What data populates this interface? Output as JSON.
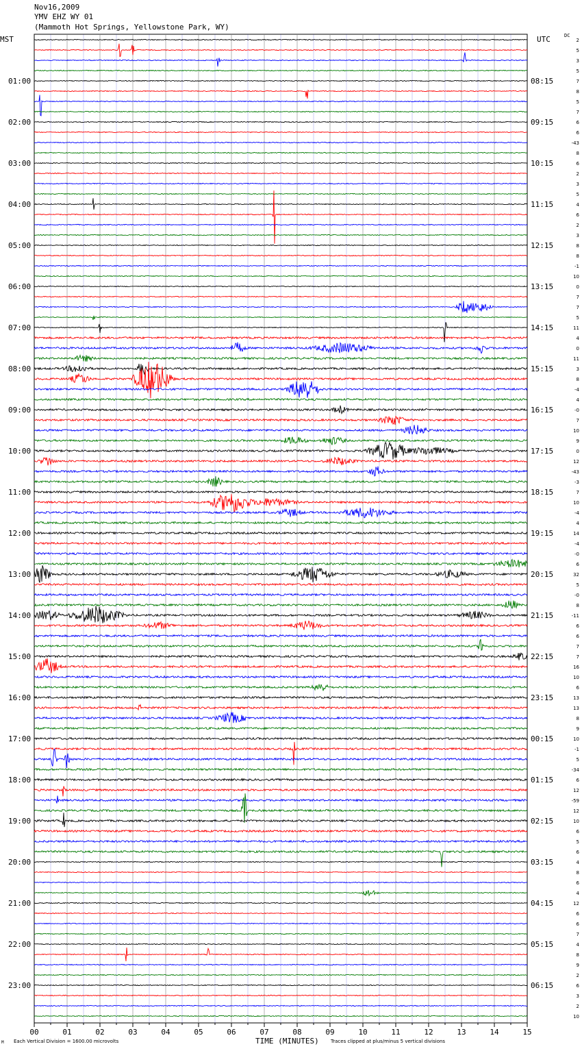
{
  "header": {
    "date": "Nov16,2009",
    "station": "YMV EHZ WY 01",
    "location": "(Mammoth Hot Springs, Yellowstone Park, WY)"
  },
  "left_timezone": "MST",
  "right_timezone": "UTC",
  "dc_label": "DC",
  "footer": {
    "scale_note": "Each Vertical Division = 1600.00 microvolts",
    "clip_note": "Traces clipped at plus/minus 5 vertical divisions",
    "mark": "M"
  },
  "colors": {
    "black": "#000000",
    "red": "#ff0000",
    "blue": "#0000ff",
    "green": "#007a00",
    "grid": "#808080",
    "blue_grid": "#0000cc"
  },
  "chart_data": {
    "type": "line",
    "xlabel": "TIME (MINUTES)",
    "xlim": [
      0,
      15
    ],
    "x_ticks": [
      "00",
      "01",
      "02",
      "03",
      "04",
      "05",
      "06",
      "07",
      "08",
      "09",
      "10",
      "11",
      "12",
      "13",
      "14",
      "15"
    ],
    "trace_minutes": 15,
    "trace_colors": [
      "black",
      "red",
      "blue",
      "green"
    ],
    "left_hour_labels": [
      "01:00",
      "02:00",
      "03:00",
      "04:00",
      "05:00",
      "06:00",
      "07:00",
      "08:00",
      "09:00",
      "10:00",
      "11:00",
      "12:00",
      "13:00",
      "14:00",
      "15:00",
      "16:00",
      "17:00",
      "18:00",
      "19:00",
      "20:00",
      "21:00",
      "22:00",
      "23:00"
    ],
    "right_hour_labels": [
      "08:15",
      "09:15",
      "10:15",
      "11:15",
      "12:15",
      "13:15",
      "14:15",
      "15:15",
      "16:15",
      "17:15",
      "18:15",
      "19:15",
      "20:15",
      "21:15",
      "22:15",
      "23:15",
      "00:15",
      "01:15",
      "02:15",
      "03:15",
      "04:15",
      "05:15",
      "06:15"
    ],
    "dc_values": [
      "2",
      "5",
      "3",
      "5",
      "7",
      "8",
      "5",
      "7",
      "6",
      "6",
      "-43",
      "8",
      "6",
      "2",
      "3",
      "5",
      "4",
      "6",
      "2",
      "3",
      "8",
      "8",
      "-1",
      "10",
      "0",
      "7",
      "7",
      "5",
      "11",
      "4",
      "0",
      "11",
      "3",
      "8",
      "-4",
      "4",
      "-0",
      "7",
      "10",
      "9",
      "0",
      "12",
      "-43",
      "-3",
      "7",
      "10",
      "-4",
      "4",
      "14",
      "-4",
      "-0",
      "6",
      "32",
      "5",
      "-0",
      "8",
      "-11",
      "6",
      "6",
      "7",
      "7",
      "16",
      "10",
      "6",
      "13",
      "13",
      "8",
      "9",
      "10",
      "-1",
      "5",
      "-34",
      "6",
      "12",
      "-59",
      "12",
      "10",
      "6",
      "5",
      "6",
      "4",
      "8",
      "6",
      "4",
      "12",
      "6",
      "6",
      "7",
      "4",
      "8",
      "9",
      "2",
      "6",
      "3",
      "2",
      "10"
    ],
    "events": [
      {
        "trace": 1,
        "minute": 2.6,
        "amp": 18,
        "width": 0.05
      },
      {
        "trace": 1,
        "minute": 3.0,
        "amp": 12,
        "width": 0.05
      },
      {
        "trace": 2,
        "minute": 5.6,
        "amp": 14,
        "width": 0.05
      },
      {
        "trace": 2,
        "minute": 13.1,
        "amp": 14,
        "width": 0.05
      },
      {
        "trace": 5,
        "minute": 8.3,
        "amp": 20,
        "width": 0.05
      },
      {
        "trace": 6,
        "minute": 0.2,
        "amp": 60,
        "width": 0.05
      },
      {
        "trace": 16,
        "minute": 1.8,
        "amp": 12,
        "width": 0.05
      },
      {
        "trace": 17,
        "minute": 7.3,
        "amp": 60,
        "width": 0.05
      },
      {
        "trace": 26,
        "minute": 13.1,
        "amp": 10,
        "width": 0.3
      },
      {
        "trace": 26,
        "minute": 13.5,
        "amp": 8,
        "width": 0.5
      },
      {
        "trace": 27,
        "minute": 1.8,
        "amp": 9,
        "width": 0.05
      },
      {
        "trace": 28,
        "minute": 2.0,
        "amp": 10,
        "width": 0.05
      },
      {
        "trace": 28,
        "minute": 12.5,
        "amp": 40,
        "width": 0.05
      },
      {
        "trace": 30,
        "minute": 6.2,
        "amp": 8,
        "width": 0.3
      },
      {
        "trace": 30,
        "minute": 9.4,
        "amp": 8,
        "width": 1.2
      },
      {
        "trace": 30,
        "minute": 13.6,
        "amp": 8,
        "width": 0.2
      },
      {
        "trace": 31,
        "minute": 1.5,
        "amp": 5,
        "width": 0.4
      },
      {
        "trace": 32,
        "minute": 3.3,
        "amp": 14,
        "width": 0.2
      },
      {
        "trace": 32,
        "minute": 1.3,
        "amp": 6,
        "width": 0.5
      },
      {
        "trace": 33,
        "minute": 3.6,
        "amp": 30,
        "width": 0.7
      },
      {
        "trace": 33,
        "minute": 1.4,
        "amp": 8,
        "width": 0.4
      },
      {
        "trace": 34,
        "minute": 8.2,
        "amp": 18,
        "width": 0.6
      },
      {
        "trace": 36,
        "minute": 9.3,
        "amp": 6,
        "width": 0.3
      },
      {
        "trace": 37,
        "minute": 10.9,
        "amp": 8,
        "width": 0.5
      },
      {
        "trace": 38,
        "minute": 11.6,
        "amp": 8,
        "width": 0.5
      },
      {
        "trace": 39,
        "minute": 7.9,
        "amp": 6,
        "width": 0.5
      },
      {
        "trace": 39,
        "minute": 9.1,
        "amp": 6,
        "width": 0.5
      },
      {
        "trace": 40,
        "minute": 10.8,
        "amp": 14,
        "width": 0.8
      },
      {
        "trace": 40,
        "minute": 12.0,
        "amp": 6,
        "width": 1.0
      },
      {
        "trace": 41,
        "minute": 0.4,
        "amp": 8,
        "width": 0.3
      },
      {
        "trace": 41,
        "minute": 9.3,
        "amp": 6,
        "width": 0.6
      },
      {
        "trace": 42,
        "minute": 10.4,
        "amp": 8,
        "width": 0.3
      },
      {
        "trace": 43,
        "minute": 5.5,
        "amp": 8,
        "width": 0.3
      },
      {
        "trace": 45,
        "minute": 6.0,
        "amp": 16,
        "width": 0.8
      },
      {
        "trace": 45,
        "minute": 7.2,
        "amp": 6,
        "width": 1.0
      },
      {
        "trace": 46,
        "minute": 7.8,
        "amp": 6,
        "width": 0.5
      },
      {
        "trace": 46,
        "minute": 10.1,
        "amp": 8,
        "width": 1.0
      },
      {
        "trace": 51,
        "minute": 14.6,
        "amp": 6,
        "width": 0.8
      },
      {
        "trace": 52,
        "minute": 0.2,
        "amp": 14,
        "width": 0.4
      },
      {
        "trace": 52,
        "minute": 8.5,
        "amp": 12,
        "width": 0.8
      },
      {
        "trace": 52,
        "minute": 12.7,
        "amp": 6,
        "width": 0.6
      },
      {
        "trace": 55,
        "minute": 14.5,
        "amp": 8,
        "width": 0.3
      },
      {
        "trace": 56,
        "minute": 1.9,
        "amp": 14,
        "width": 1.0
      },
      {
        "trace": 56,
        "minute": 0.4,
        "amp": 8,
        "width": 0.5
      },
      {
        "trace": 56,
        "minute": 13.4,
        "amp": 6,
        "width": 0.6
      },
      {
        "trace": 57,
        "minute": 8.3,
        "amp": 7,
        "width": 0.6
      },
      {
        "trace": 57,
        "minute": 3.8,
        "amp": 5,
        "width": 0.6
      },
      {
        "trace": 59,
        "minute": 13.6,
        "amp": 18,
        "width": 0.1
      },
      {
        "trace": 60,
        "minute": 14.8,
        "amp": 6,
        "width": 0.3
      },
      {
        "trace": 61,
        "minute": 0.4,
        "amp": 12,
        "width": 0.5
      },
      {
        "trace": 63,
        "minute": 8.7,
        "amp": 8,
        "width": 0.3
      },
      {
        "trace": 65,
        "minute": 3.2,
        "amp": 14,
        "width": 0.05
      },
      {
        "trace": 66,
        "minute": 6.0,
        "amp": 8,
        "width": 0.6
      },
      {
        "trace": 69,
        "minute": 7.9,
        "amp": 30,
        "width": 0.05
      },
      {
        "trace": 70,
        "minute": 0.6,
        "amp": 22,
        "width": 0.1
      },
      {
        "trace": 70,
        "minute": 1.0,
        "amp": 20,
        "width": 0.1
      },
      {
        "trace": 73,
        "minute": 0.9,
        "amp": 18,
        "width": 0.05
      },
      {
        "trace": 74,
        "minute": 0.7,
        "amp": 16,
        "width": 0.05
      },
      {
        "trace": 75,
        "minute": 6.4,
        "amp": 40,
        "width": 0.1
      },
      {
        "trace": 76,
        "minute": 0.9,
        "amp": 14,
        "width": 0.05
      },
      {
        "trace": 79,
        "minute": 12.4,
        "amp": 24,
        "width": 0.05
      },
      {
        "trace": 83,
        "minute": 10.2,
        "amp": 5,
        "width": 0.3
      },
      {
        "trace": 89,
        "minute": 2.8,
        "amp": 14,
        "width": 0.05
      },
      {
        "trace": 89,
        "minute": 5.3,
        "amp": 10,
        "width": 0.05
      }
    ]
  }
}
